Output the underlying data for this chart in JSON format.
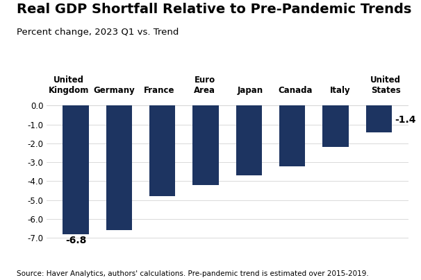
{
  "title": "Real GDP Shortfall Relative to Pre-Pandemic Trends",
  "subtitle": "Percent change, 2023 Q1 vs. Trend",
  "source": "Source: Haver Analytics, authors' calculations. Pre-pandemic trend is estimated over 2015-2019.",
  "categories": [
    "United\nKingdom",
    "Germany",
    "France",
    "Euro\nArea",
    "Japan",
    "Canada",
    "Italy",
    "United\nStates"
  ],
  "values": [
    -6.8,
    -6.6,
    -4.8,
    -4.2,
    -3.7,
    -3.2,
    -2.2,
    -1.4
  ],
  "bar_color": "#1d3461",
  "ylim": [
    -7.3,
    0.4
  ],
  "yticks": [
    0.0,
    -1.0,
    -2.0,
    -3.0,
    -4.0,
    -5.0,
    -6.0,
    -7.0
  ],
  "background_color": "#ffffff",
  "title_fontsize": 14,
  "subtitle_fontsize": 9.5,
  "tick_fontsize": 8.5,
  "source_fontsize": 7.5,
  "bar_width": 0.6
}
